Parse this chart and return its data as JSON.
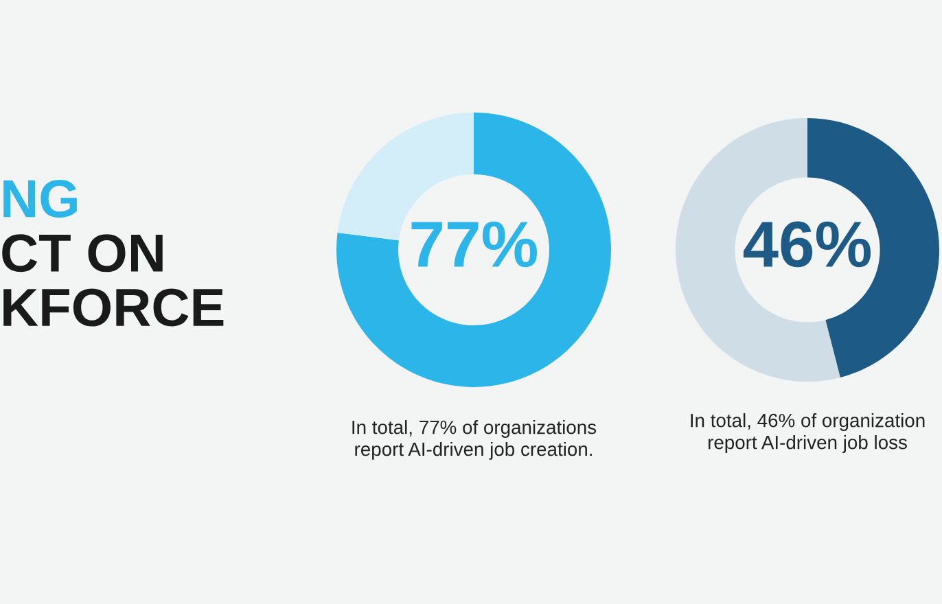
{
  "chart_data": [
    {
      "type": "other",
      "annotations": [
        "NG",
        "CT ON",
        "KFORCE"
      ]
    },
    {
      "type": "donut",
      "categories": [
        null,
        null
      ],
      "values": [
        77,
        23
      ],
      "colors": [
        "#2cb5e8",
        "#d4eef9"
      ],
      "annotations": [
        "77%",
        "In total, 77% of organizations\nreport AI-driven job creation."
      ]
    },
    {
      "type": "donut",
      "categories": [
        null,
        null
      ],
      "values": [
        46,
        54
      ],
      "colors": [
        "#1d5a85",
        "#cfdde6"
      ],
      "annotations": [
        "46%",
        "In total, 46% of organization\nreport AI-driven job loss"
      ]
    }
  ]
}
